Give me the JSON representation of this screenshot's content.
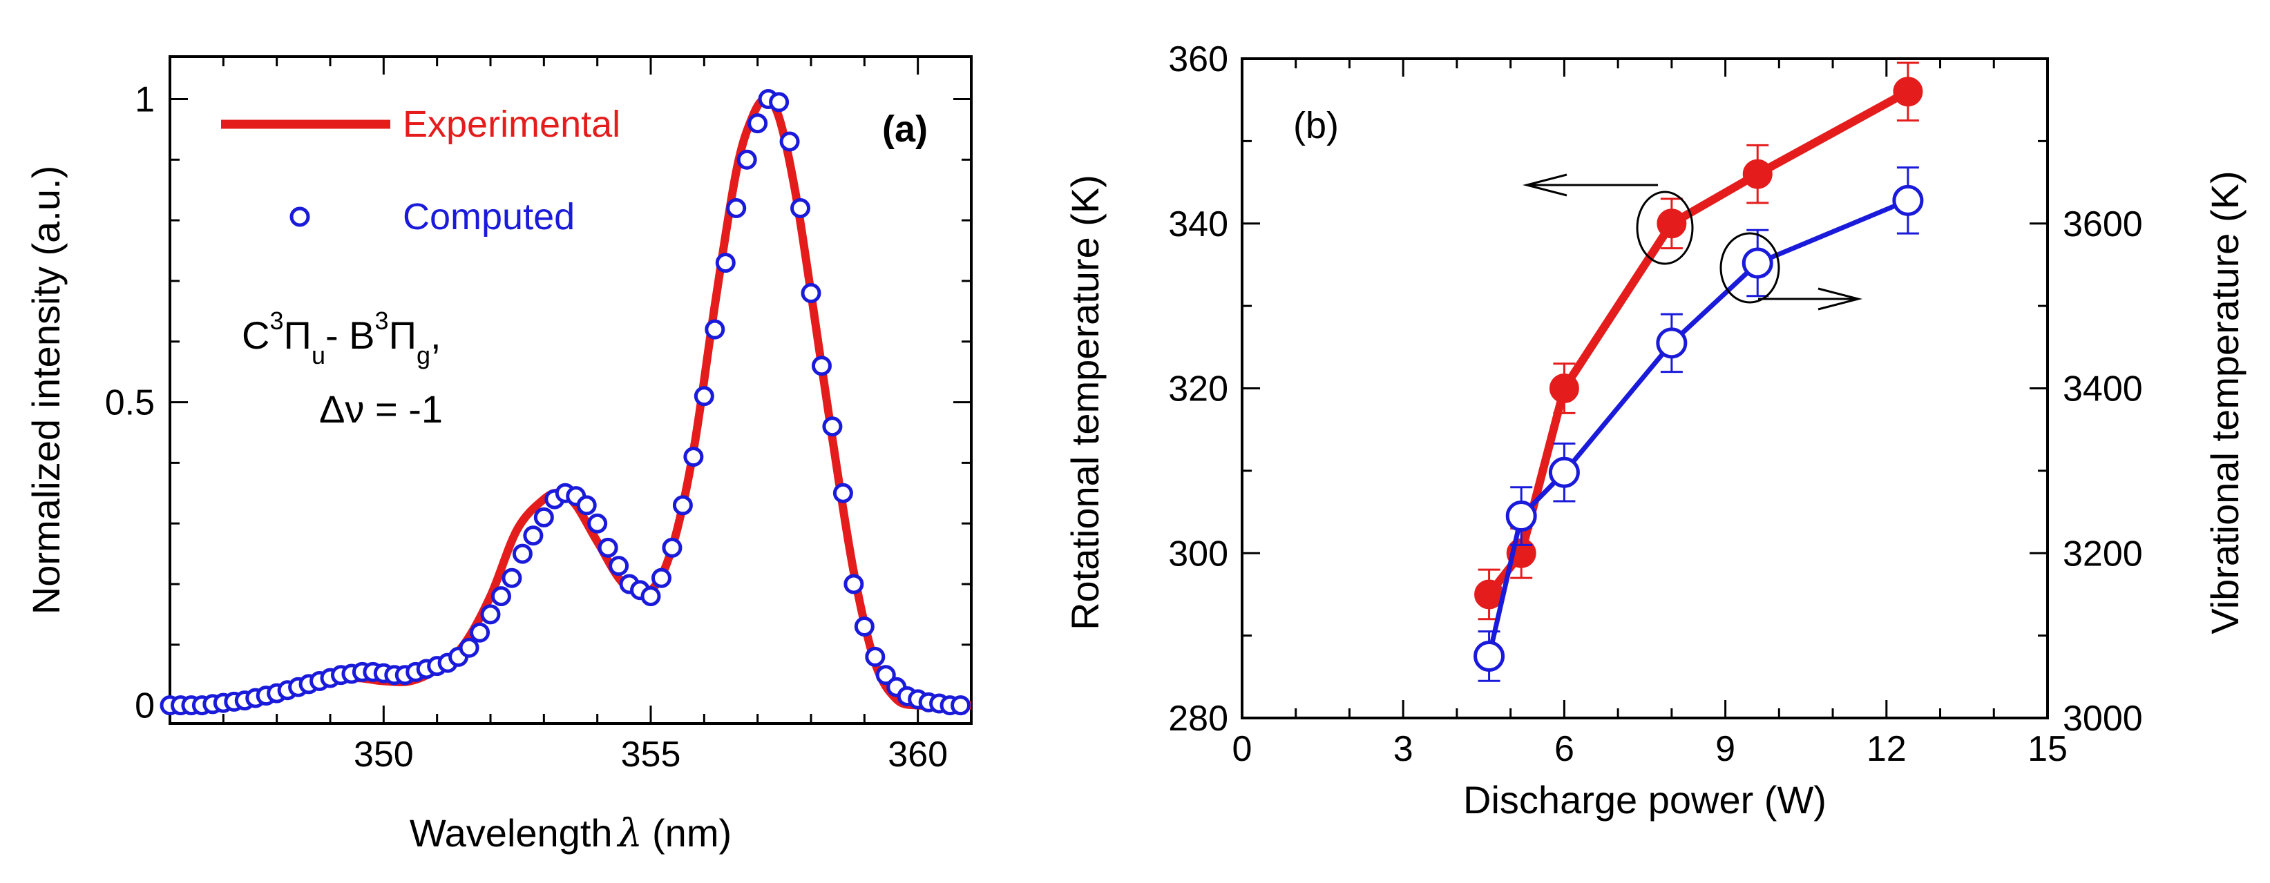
{
  "chart_data": [
    {
      "type": "line",
      "panel_label": "(a)",
      "xlabel": "Wavelength",
      "xlabel_symbol": "λ",
      "xlabel_unit": "(nm)",
      "ylabel": "Normalized intensity (a.u.)",
      "xlim": [
        346,
        361
      ],
      "ylim": [
        -0.03,
        1.07
      ],
      "xticks": [
        350,
        355,
        360
      ],
      "xtick_labels": [
        "350",
        "355",
        "360"
      ],
      "yticks": [
        0,
        0.5,
        1
      ],
      "ytick_labels": [
        "0",
        "0.5",
        "1"
      ],
      "grid": false,
      "legend": {
        "position": "top-left",
        "entries": [
          {
            "label": "Experimental",
            "style": "line",
            "color": "#e41c1c"
          },
          {
            "label": "Computed",
            "style": "open-circle",
            "color": "#1a1adb"
          }
        ]
      },
      "annotation": {
        "line1_parts": [
          "C",
          "3",
          "Π",
          "u",
          "-  B",
          "3",
          "Π",
          "g",
          ","
        ],
        "line2_symbol": "Δν",
        "line2_text": " = -1"
      },
      "series": [
        {
          "name": "Experimental",
          "color": "#e41c1c",
          "x": [
            346.0,
            347.0,
            348.0,
            348.5,
            349.0,
            349.5,
            350.0,
            350.5,
            351.0,
            351.5,
            352.0,
            352.5,
            353.0,
            353.3,
            353.6,
            354.0,
            354.5,
            355.0,
            355.4,
            355.8,
            356.2,
            356.6,
            356.9,
            357.15,
            357.4,
            357.7,
            358.0,
            358.4,
            358.8,
            359.2,
            359.6,
            360.0,
            360.5,
            361.0
          ],
          "y": [
            0.0,
            0.0,
            0.02,
            0.03,
            0.04,
            0.045,
            0.04,
            0.04,
            0.06,
            0.1,
            0.18,
            0.29,
            0.34,
            0.35,
            0.33,
            0.27,
            0.2,
            0.19,
            0.26,
            0.42,
            0.66,
            0.88,
            0.97,
            1.0,
            0.97,
            0.85,
            0.68,
            0.44,
            0.22,
            0.07,
            0.01,
            0.0,
            0.0,
            0.0
          ]
        },
        {
          "name": "Computed",
          "color": "#1a1adb",
          "x": [
            346.0,
            346.2,
            346.4,
            346.6,
            346.8,
            347.0,
            347.2,
            347.4,
            347.6,
            347.8,
            348.0,
            348.2,
            348.4,
            348.6,
            348.8,
            349.0,
            349.2,
            349.4,
            349.6,
            349.8,
            350.0,
            350.2,
            350.4,
            350.6,
            350.8,
            351.0,
            351.2,
            351.4,
            351.6,
            351.8,
            352.0,
            352.2,
            352.4,
            352.6,
            352.8,
            353.0,
            353.2,
            353.4,
            353.6,
            353.8,
            354.0,
            354.2,
            354.4,
            354.6,
            354.8,
            355.0,
            355.2,
            355.4,
            355.6,
            355.8,
            356.0,
            356.2,
            356.4,
            356.6,
            356.8,
            357.0,
            357.2,
            357.4,
            357.6,
            357.8,
            358.0,
            358.2,
            358.4,
            358.6,
            358.8,
            359.0,
            359.2,
            359.4,
            359.6,
            359.8,
            360.0,
            360.2,
            360.4,
            360.6,
            360.8
          ],
          "y": [
            0.0,
            0.0,
            0.0,
            0.0,
            0.002,
            0.004,
            0.006,
            0.008,
            0.012,
            0.016,
            0.02,
            0.025,
            0.03,
            0.035,
            0.04,
            0.045,
            0.05,
            0.052,
            0.055,
            0.055,
            0.053,
            0.05,
            0.05,
            0.055,
            0.06,
            0.065,
            0.07,
            0.08,
            0.095,
            0.12,
            0.15,
            0.18,
            0.21,
            0.25,
            0.28,
            0.31,
            0.34,
            0.35,
            0.345,
            0.33,
            0.3,
            0.26,
            0.23,
            0.2,
            0.19,
            0.18,
            0.21,
            0.26,
            0.33,
            0.41,
            0.51,
            0.62,
            0.73,
            0.82,
            0.9,
            0.96,
            1.0,
            0.995,
            0.93,
            0.82,
            0.68,
            0.56,
            0.46,
            0.35,
            0.2,
            0.13,
            0.08,
            0.05,
            0.03,
            0.015,
            0.01,
            0.005,
            0.003,
            0.0,
            0.0
          ]
        }
      ]
    },
    {
      "type": "line",
      "panel_label": "(b)",
      "xlabel": "Discharge power (W)",
      "ylabel": "Rotational temperature (K)",
      "ylabel_right": "Vibrational temperature (K)",
      "xlim": [
        0,
        15
      ],
      "ylim": [
        280,
        360
      ],
      "ylim_right": [
        3000,
        3800
      ],
      "xticks": [
        0,
        3,
        6,
        9,
        12,
        15
      ],
      "xtick_labels": [
        "0",
        "3",
        "6",
        "9",
        "12",
        "15"
      ],
      "yticks": [
        280,
        300,
        320,
        340,
        360
      ],
      "ytick_labels": [
        "280",
        "300",
        "320",
        "340",
        "360"
      ],
      "yticks_right": [
        3000,
        3200,
        3400,
        3600
      ],
      "ytick_labels_right": [
        "3000",
        "3200",
        "3400",
        "3600"
      ],
      "grid": false,
      "arrows": [
        {
          "target_series": "Rotational temperature",
          "direction": "left",
          "axis": "left"
        },
        {
          "target_series": "Vibrational temperature",
          "direction": "right",
          "axis": "right"
        }
      ],
      "series": [
        {
          "name": "Rotational temperature",
          "axis": "left",
          "marker": "filled-circle",
          "color": "#e41c1c",
          "x": [
            4.6,
            5.2,
            6.0,
            8.0,
            9.6,
            12.4
          ],
          "y": [
            295,
            300,
            320,
            340,
            346,
            356
          ],
          "err": [
            3,
            3,
            3,
            3,
            3.5,
            3.5
          ]
        },
        {
          "name": "Vibrational temperature",
          "axis": "right",
          "marker": "open-circle",
          "color": "#1a1adb",
          "x": [
            4.6,
            5.2,
            6.0,
            8.0,
            9.6,
            12.4
          ],
          "y": [
            3075,
            3245,
            3298,
            3455,
            3552,
            3628
          ],
          "err": [
            30,
            35,
            35,
            35,
            40,
            40
          ]
        }
      ]
    }
  ]
}
